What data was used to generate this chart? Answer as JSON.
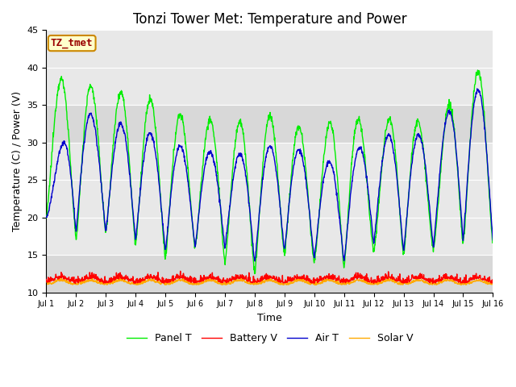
{
  "title": "Tonzi Tower Met: Temperature and Power",
  "xlabel": "Time",
  "ylabel": "Temperature (C) / Power (V)",
  "xlim": [
    0,
    15
  ],
  "ylim": [
    10,
    45
  ],
  "yticks": [
    10,
    15,
    20,
    25,
    30,
    35,
    40,
    45
  ],
  "xtick_labels": [
    "Jul 1",
    "Jul 2",
    "Jul 3",
    "Jul 4",
    "Jul 5",
    "Jul 6",
    "Jul 7",
    "Jul 8",
    "Jul 9",
    "Jul 10",
    "Jul 11",
    "Jul 12",
    "Jul 13",
    "Jul 14",
    "Jul 15",
    "Jul 16"
  ],
  "bg_color": "#e8e8e8",
  "bg_stripe_color": "#d0d0d0",
  "panel_color": "#00ee00",
  "battery_color": "#ff0000",
  "air_color": "#0000cc",
  "solar_color": "#ffaa00",
  "legend_labels": [
    "Panel T",
    "Battery V",
    "Air T",
    "Solar V"
  ],
  "annotation_text": "TZ_tmet",
  "annotation_bg": "#ffffcc",
  "annotation_border": "#cc8800",
  "annotation_fg": "#990000",
  "title_fontsize": 12,
  "axis_fontsize": 9,
  "tick_fontsize": 8,
  "legend_fontsize": 9
}
